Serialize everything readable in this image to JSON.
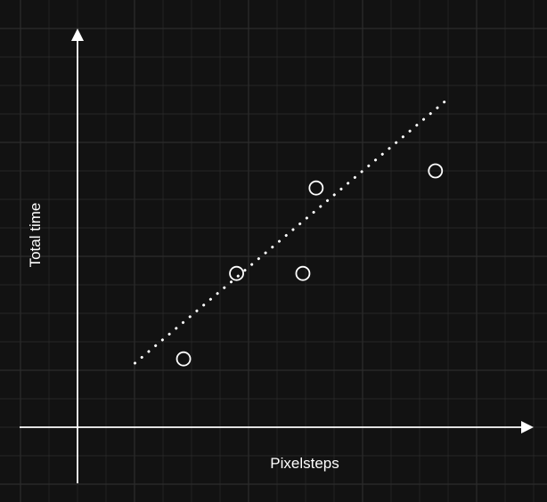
{
  "colors": {
    "background": "#121212",
    "grid": "#2c2c2c",
    "ink": "#ffffff"
  },
  "chart_data": {
    "type": "scatter",
    "title": "",
    "xlabel": "Pixelsteps",
    "ylabel": "Total time",
    "xlim": [
      0,
      10
    ],
    "ylim": [
      0,
      10
    ],
    "grid": true,
    "legend": "none",
    "axis_ticks": "none",
    "points": [
      {
        "x": 2.4,
        "y": 1.6
      },
      {
        "x": 3.6,
        "y": 3.6
      },
      {
        "x": 5.1,
        "y": 3.6
      },
      {
        "x": 5.4,
        "y": 5.6
      },
      {
        "x": 8.1,
        "y": 6.0
      }
    ],
    "trendline": {
      "style": "dotted",
      "x": [
        1.3,
        8.4
      ],
      "y": [
        1.5,
        7.7
      ]
    }
  }
}
